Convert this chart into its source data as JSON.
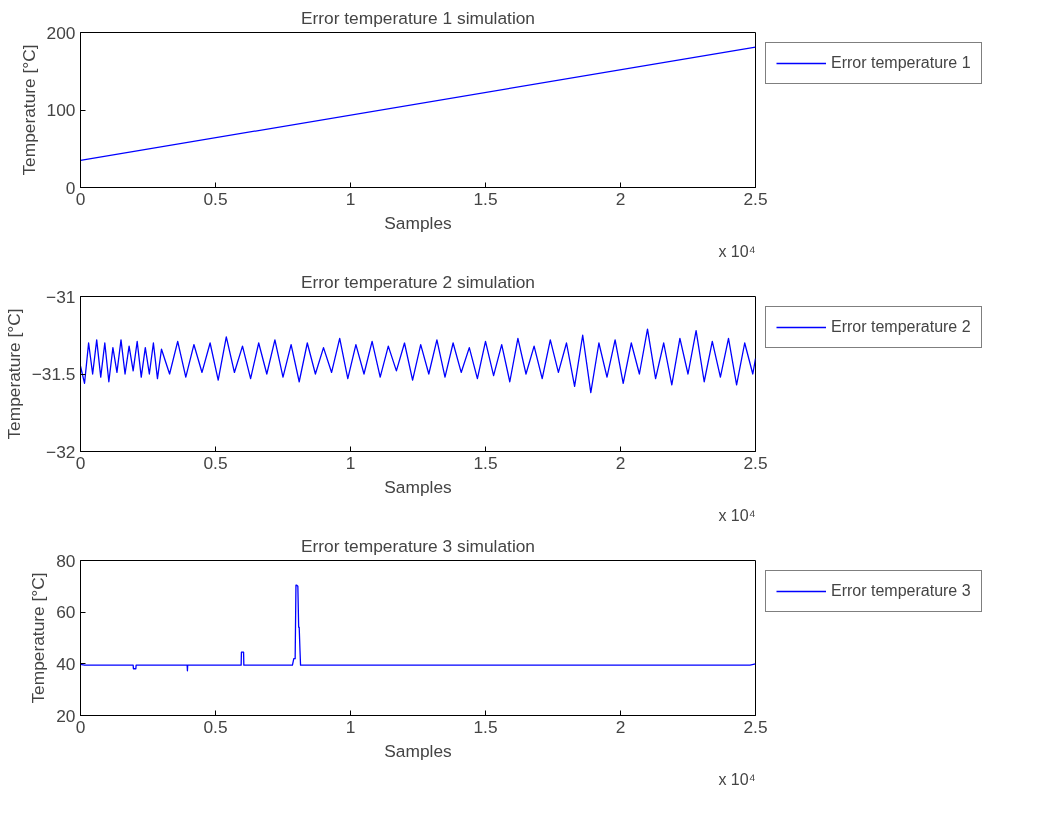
{
  "chart_data": [
    {
      "type": "line",
      "title": "Error temperature 1 simulation",
      "xlabel": "Samples",
      "ylabel": "Temperature [°C]",
      "annotations": [
        "x 10⁴"
      ],
      "legend": "right",
      "grid": false,
      "xlim": [
        0,
        2.5
      ],
      "xticks": [
        0,
        0.5,
        1,
        1.5,
        2,
        2.5
      ],
      "ylim": [
        0,
        200
      ],
      "yticks": [
        0,
        100,
        200
      ],
      "series": [
        {
          "name": "Error temperature 1",
          "color": "#0000ff",
          "x": [
            0,
            2.5
          ],
          "values": [
            35,
            181
          ]
        }
      ]
    },
    {
      "type": "line",
      "title": "Error temperature 2 simulation",
      "xlabel": "Samples",
      "ylabel": "Temperature [°C]",
      "annotations": [
        "x 10⁴"
      ],
      "legend": "right",
      "grid": false,
      "xlim": [
        0,
        2.5
      ],
      "xticks": [
        0,
        0.5,
        1,
        1.5,
        2,
        2.5
      ],
      "ylim": [
        -32,
        -31
      ],
      "yticks": [
        -32,
        -31.5,
        -31
      ],
      "series": [
        {
          "name": "Error temperature 2",
          "color": "#0000ff",
          "x": [
            0,
            0.015,
            0.03,
            0.045,
            0.06,
            0.075,
            0.09,
            0.105,
            0.12,
            0.135,
            0.15,
            0.165,
            0.18,
            0.195,
            0.21,
            0.225,
            0.24,
            0.255,
            0.27,
            0.285,
            0.3,
            0.33,
            0.36,
            0.39,
            0.42,
            0.45,
            0.48,
            0.51,
            0.54,
            0.57,
            0.6,
            0.63,
            0.66,
            0.69,
            0.72,
            0.75,
            0.78,
            0.81,
            0.84,
            0.87,
            0.9,
            0.93,
            0.96,
            0.99,
            1.02,
            1.05,
            1.08,
            1.11,
            1.14,
            1.17,
            1.2,
            1.23,
            1.26,
            1.29,
            1.32,
            1.35,
            1.38,
            1.41,
            1.44,
            1.47,
            1.5,
            1.53,
            1.56,
            1.59,
            1.62,
            1.65,
            1.68,
            1.71,
            1.74,
            1.77,
            1.8,
            1.83,
            1.86,
            1.89,
            1.92,
            1.95,
            1.98,
            2.01,
            2.04,
            2.07,
            2.1,
            2.13,
            2.16,
            2.19,
            2.22,
            2.25,
            2.28,
            2.31,
            2.34,
            2.37,
            2.4,
            2.43,
            2.46,
            2.49,
            2.5
          ],
          "values": [
            -31.45,
            -31.56,
            -31.3,
            -31.5,
            -31.28,
            -31.52,
            -31.3,
            -31.55,
            -31.33,
            -31.49,
            -31.28,
            -31.5,
            -31.32,
            -31.48,
            -31.29,
            -31.52,
            -31.33,
            -31.5,
            -31.3,
            -31.53,
            -31.34,
            -31.5,
            -31.29,
            -31.52,
            -31.31,
            -31.49,
            -31.3,
            -31.54,
            -31.26,
            -31.49,
            -31.32,
            -31.53,
            -31.3,
            -31.5,
            -31.28,
            -31.52,
            -31.31,
            -31.55,
            -31.3,
            -31.5,
            -31.33,
            -31.49,
            -31.27,
            -31.53,
            -31.31,
            -31.5,
            -31.29,
            -31.52,
            -31.32,
            -31.48,
            -31.3,
            -31.54,
            -31.31,
            -31.5,
            -31.28,
            -31.52,
            -31.3,
            -31.49,
            -31.33,
            -31.53,
            -31.29,
            -31.51,
            -31.31,
            -31.55,
            -31.27,
            -31.5,
            -31.32,
            -31.53,
            -31.28,
            -31.49,
            -31.3,
            -31.58,
            -31.25,
            -31.62,
            -31.3,
            -31.52,
            -31.28,
            -31.56,
            -31.3,
            -31.5,
            -31.21,
            -31.53,
            -31.3,
            -31.57,
            -31.27,
            -31.5,
            -31.22,
            -31.55,
            -31.29,
            -31.52,
            -31.27,
            -31.57,
            -31.3,
            -31.5,
            -31.4
          ]
        }
      ]
    },
    {
      "type": "line",
      "title": "Error temperature 3 simulation",
      "xlabel": "Samples",
      "ylabel": "Temperature [°C]",
      "annotations": [
        "x 10⁴"
      ],
      "legend": "right",
      "grid": false,
      "xlim": [
        0,
        2.5
      ],
      "xticks": [
        0,
        0.5,
        1,
        1.5,
        2,
        2.5
      ],
      "ylim": [
        20,
        80
      ],
      "yticks": [
        20,
        40,
        60,
        80
      ],
      "series": [
        {
          "name": "Error temperature 3",
          "color": "#0000ff",
          "x": [
            0,
            0.015,
            0.03,
            0.195,
            0.196,
            0.205,
            0.206,
            0.395,
            0.396,
            0.397,
            0.595,
            0.596,
            0.604,
            0.605,
            0.785,
            0.79,
            0.795,
            0.798,
            0.8,
            0.805,
            0.808,
            0.81,
            0.813,
            0.815,
            0.817,
            2.48,
            2.5
          ],
          "values": [
            39.8,
            39.5,
            39.5,
            39.5,
            38.1,
            38.1,
            39.5,
            39.5,
            37.3,
            39.5,
            39.5,
            44.5,
            44.5,
            39.5,
            39.5,
            42,
            42,
            70.5,
            70.5,
            70,
            54.2,
            54.2,
            45,
            39.5,
            39.5,
            39.5,
            40
          ]
        }
      ]
    }
  ]
}
